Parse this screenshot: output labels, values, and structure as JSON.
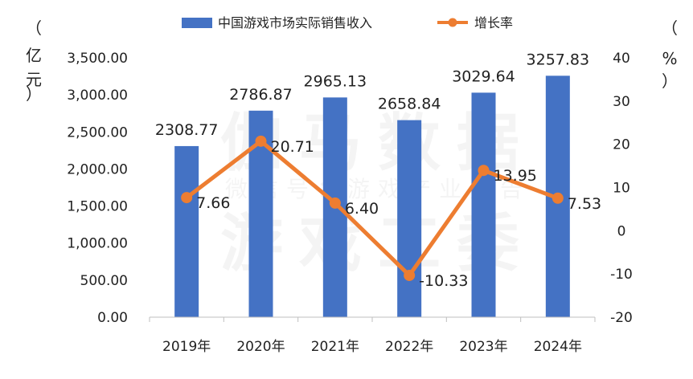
{
  "chart_data": {
    "type": "bar",
    "categories": [
      "2019年",
      "2020年",
      "2021年",
      "2022年",
      "2023年",
      "2024年"
    ],
    "series": [
      {
        "name": "中国游戏市场实际销售收入",
        "type": "bar",
        "axis": "left",
        "color": "#4472c4",
        "values": [
          2308.77,
          2786.87,
          2965.13,
          2658.84,
          3029.64,
          3257.83
        ],
        "labels": [
          "2308.77",
          "2786.87",
          "2965.13",
          "2658.84",
          "3029.64",
          "3257.83"
        ]
      },
      {
        "name": "增长率",
        "type": "line",
        "axis": "right",
        "color": "#ed7d31",
        "values": [
          7.66,
          20.71,
          6.4,
          -10.33,
          13.95,
          7.53
        ],
        "labels": [
          "7.66",
          "20.71",
          "6.40",
          "-10.33",
          "13.95",
          "7.53"
        ]
      }
    ],
    "left_axis": {
      "unit_label": "（亿元）",
      "min": 0,
      "max": 3500,
      "step": 500,
      "tick_labels": [
        "0.00",
        "500.00",
        "1,000.00",
        "1,500.00",
        "2,000.00",
        "2,500.00",
        "3,000.00",
        "3,500.00"
      ]
    },
    "right_axis": {
      "unit_label": "（%）",
      "min": -20,
      "max": 40,
      "step": 10,
      "tick_labels": [
        "-20",
        "-10",
        "0",
        "10",
        "20",
        "30",
        "40"
      ]
    },
    "legend_position": "top",
    "grid": false,
    "watermark": [
      "伽马数据",
      "微信号：游戏产业报告",
      "游戏工委"
    ]
  }
}
